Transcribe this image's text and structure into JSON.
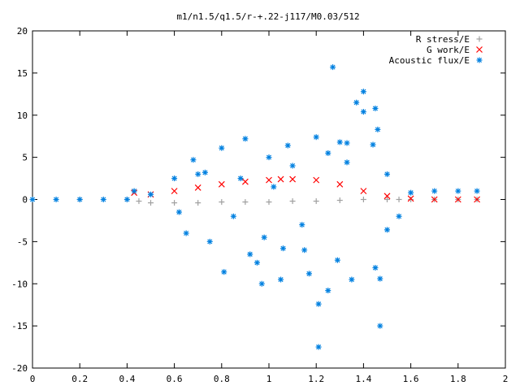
{
  "chart_data": {
    "type": "scatter",
    "title": "m1/n1.5/q1.5/r-+.22-j117/M0.03/512",
    "xlabel": "",
    "ylabel": "",
    "xlim": [
      0,
      2
    ],
    "ylim": [
      -20,
      20
    ],
    "x_ticks": [
      "0",
      "0.2",
      "0.4",
      "0.6",
      "0.8",
      "1",
      "1.2",
      "1.4",
      "1.6",
      "1.8",
      "2"
    ],
    "y_ticks": [
      "20",
      "15",
      "10",
      "5",
      "0",
      "-5",
      "-10",
      "-15",
      "-20"
    ],
    "grid": false,
    "legend_position": "top-right",
    "series": [
      {
        "name": "R stress/E",
        "marker": "+",
        "color": "#a0a0a0",
        "x": [
          0.0,
          0.2,
          0.4,
          0.45,
          0.5,
          0.6,
          0.7,
          0.8,
          0.9,
          1.0,
          1.1,
          1.2,
          1.3,
          1.4,
          1.5,
          1.55,
          1.6,
          1.7,
          1.8,
          1.88
        ],
        "y": [
          0.0,
          0.0,
          0.0,
          -0.2,
          -0.4,
          -0.4,
          -0.4,
          -0.3,
          -0.3,
          -0.3,
          -0.2,
          -0.2,
          -0.1,
          0.0,
          0.0,
          0.0,
          0.0,
          0.0,
          0.0,
          0.0
        ]
      },
      {
        "name": "G work/E",
        "marker": "x",
        "color": "#ff0000",
        "x": [
          0.43,
          0.5,
          0.6,
          0.7,
          0.8,
          0.9,
          1.0,
          1.05,
          1.1,
          1.2,
          1.3,
          1.4,
          1.5,
          1.6,
          1.7,
          1.8,
          1.88
        ],
        "y": [
          0.8,
          0.6,
          1.0,
          1.4,
          1.8,
          2.1,
          2.3,
          2.4,
          2.4,
          2.3,
          1.8,
          1.0,
          0.4,
          0.1,
          0.0,
          0.0,
          0.0
        ]
      },
      {
        "name": "Acoustic flux/E",
        "marker": "*",
        "color": "#0080e0",
        "x": [
          0.0,
          0.1,
          0.2,
          0.3,
          0.4,
          0.43,
          0.5,
          1.6,
          1.7,
          1.8,
          1.88,
          0.6,
          0.65,
          0.7,
          0.75,
          0.8,
          0.85,
          0.9,
          0.95,
          1.0,
          1.05,
          1.1,
          1.15,
          1.2,
          1.25,
          1.3,
          1.35,
          1.4,
          1.45,
          1.5,
          1.55,
          1.27,
          1.37,
          1.4,
          1.21,
          1.21,
          1.47,
          1.47,
          1.46,
          0.81,
          0.92,
          0.97,
          1.08,
          1.17,
          1.25,
          1.33,
          1.45,
          1.29,
          0.68,
          0.88,
          1.02,
          1.06,
          1.33,
          1.44,
          1.5,
          0.62,
          0.73,
          0.98,
          1.14
        ],
        "y": [
          0.0,
          0.0,
          0.0,
          0.0,
          0.0,
          1.0,
          0.6,
          0.8,
          1.0,
          1.0,
          1.0,
          2.5,
          -4.0,
          3.0,
          -5.0,
          6.1,
          -2.0,
          7.2,
          -7.5,
          5.0,
          -9.5,
          4.0,
          -6.0,
          7.4,
          -10.8,
          6.8,
          -9.5,
          12.8,
          -8.1,
          3.0,
          -2.0,
          15.7,
          11.5,
          10.4,
          -12.4,
          -17.5,
          -9.4,
          -15.0,
          8.3,
          -8.6,
          -6.5,
          -10.0,
          6.4,
          -8.8,
          5.5,
          6.7,
          10.8,
          -7.2,
          4.7,
          2.5,
          1.5,
          -5.8,
          4.4,
          6.5,
          -3.6,
          -1.5,
          3.2,
          -4.5,
          -3.0
        ]
      }
    ]
  }
}
